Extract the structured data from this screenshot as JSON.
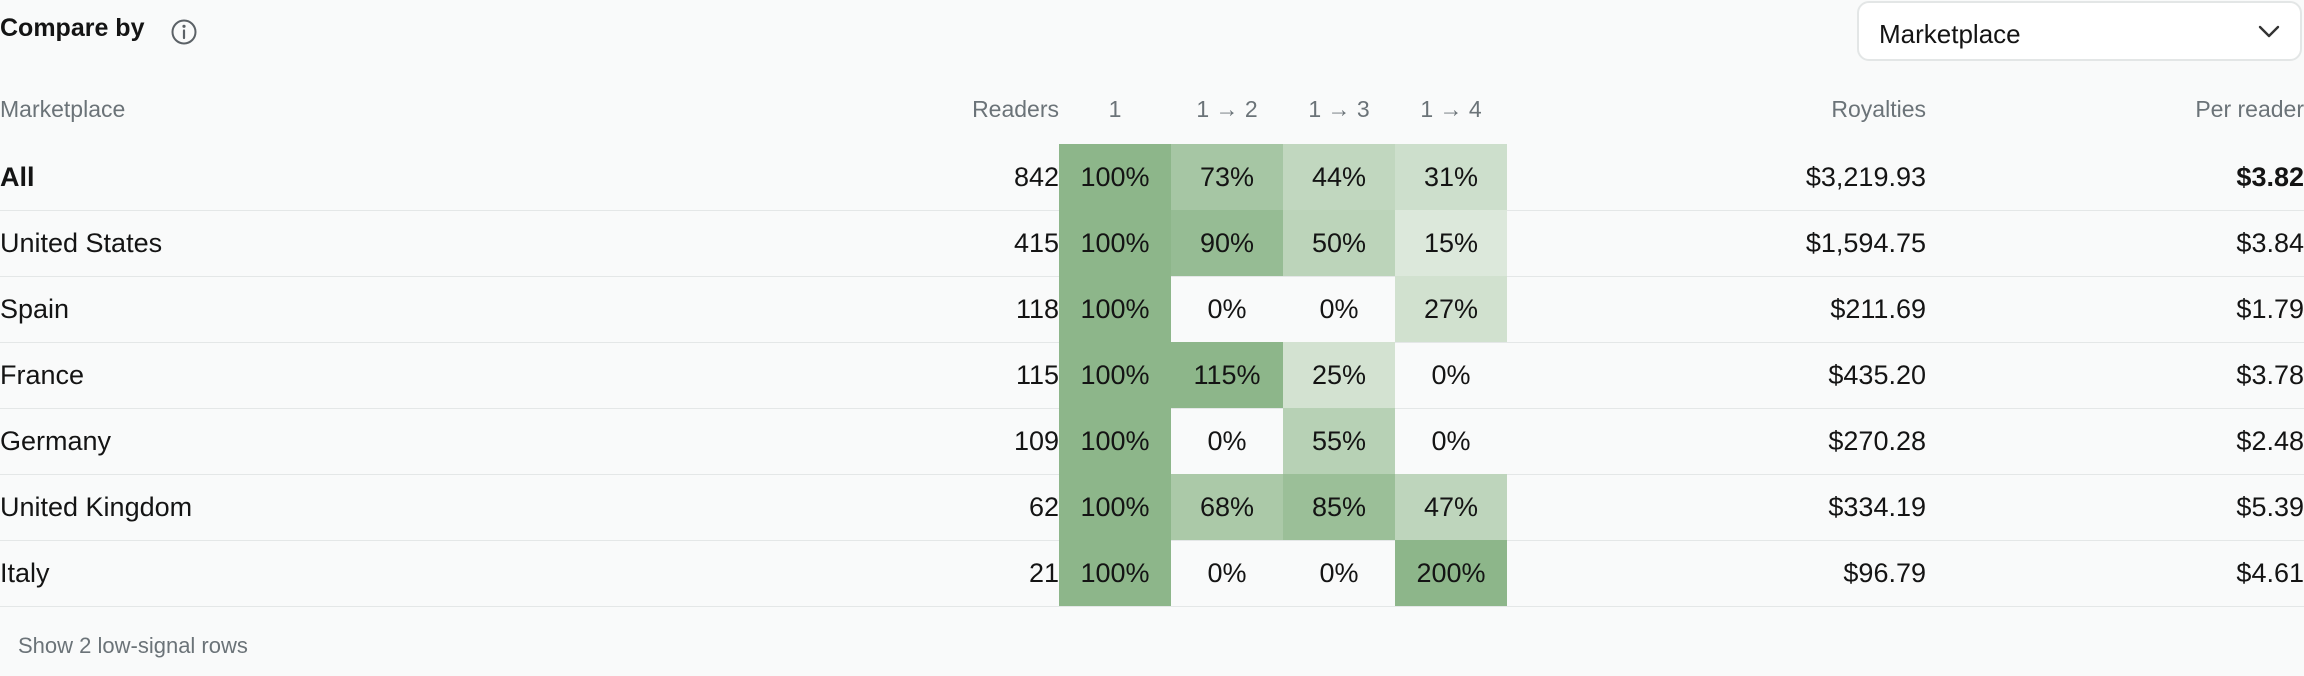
{
  "compare": {
    "label": "Compare by",
    "selected": "Marketplace"
  },
  "columns": {
    "marketplace": "Marketplace",
    "readers": "Readers",
    "r1": "1",
    "r2": "1 → 2",
    "r3": "1 → 3",
    "r4": "1 → 4",
    "royalties": "Royalties",
    "per_reader": "Per reader"
  },
  "rows": [
    {
      "name": "All",
      "readers": "842",
      "r1": "100%",
      "r2": "73%",
      "r3": "44%",
      "r4": "31%",
      "royalties": "$3,219.93",
      "per_reader": "$3.82"
    },
    {
      "name": "United States",
      "readers": "415",
      "r1": "100%",
      "r2": "90%",
      "r3": "50%",
      "r4": "15%",
      "royalties": "$1,594.75",
      "per_reader": "$3.84"
    },
    {
      "name": "Spain",
      "readers": "118",
      "r1": "100%",
      "r2": "0%",
      "r3": "0%",
      "r4": "27%",
      "royalties": "$211.69",
      "per_reader": "$1.79"
    },
    {
      "name": "France",
      "readers": "115",
      "r1": "100%",
      "r2": "115%",
      "r3": "25%",
      "r4": "0%",
      "royalties": "$435.20",
      "per_reader": "$3.78"
    },
    {
      "name": "Germany",
      "readers": "109",
      "r1": "100%",
      "r2": "0%",
      "r3": "55%",
      "r4": "0%",
      "royalties": "$270.28",
      "per_reader": "$2.48"
    },
    {
      "name": "United Kingdom",
      "readers": "62",
      "r1": "100%",
      "r2": "68%",
      "r3": "85%",
      "r4": "47%",
      "royalties": "$334.19",
      "per_reader": "$5.39"
    },
    {
      "name": "Italy",
      "readers": "21",
      "r1": "100%",
      "r2": "0%",
      "r3": "0%",
      "r4": "200%",
      "royalties": "$96.79",
      "per_reader": "$4.61"
    }
  ],
  "footer": {
    "show_more": "Show 2 low-signal rows"
  },
  "colors": {
    "heat_max": "#8db68a",
    "heat_min": "#eaf1e9"
  }
}
